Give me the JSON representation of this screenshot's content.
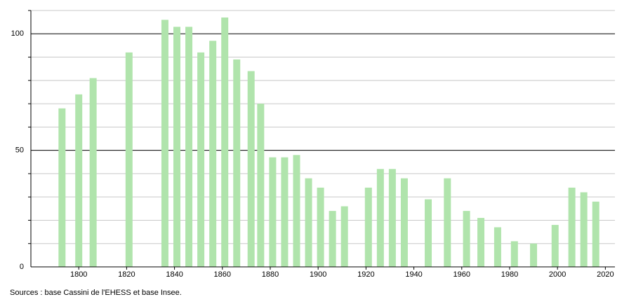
{
  "chart_data": {
    "type": "bar",
    "x": [
      1793,
      1800,
      1806,
      1821,
      1836,
      1841,
      1846,
      1851,
      1856,
      1861,
      1866,
      1872,
      1876,
      1881,
      1886,
      1891,
      1896,
      1901,
      1906,
      1911,
      1921,
      1926,
      1931,
      1936,
      1946,
      1954,
      1962,
      1968,
      1975,
      1982,
      1990,
      1999,
      2006,
      2011,
      2016
    ],
    "values": [
      68,
      74,
      81,
      92,
      106,
      103,
      103,
      92,
      97,
      107,
      89,
      84,
      70,
      47,
      47,
      48,
      38,
      34,
      24,
      26,
      34,
      42,
      42,
      38,
      29,
      38,
      24,
      21,
      17,
      11,
      10,
      18,
      34,
      32,
      28
    ],
    "color": "#b0e4ac",
    "xlim": [
      1780,
      2024
    ],
    "xticks": [
      1800,
      1820,
      1840,
      1860,
      1880,
      1900,
      1920,
      1940,
      1960,
      1980,
      2000,
      2020
    ],
    "ylim": [
      0,
      110
    ],
    "yticks": [
      0,
      50,
      100
    ],
    "minor_yticks": [
      10,
      20,
      30,
      40,
      60,
      70,
      80,
      90,
      110
    ],
    "grid": true,
    "source": "Sources : base Cassini de l'EHESS et base Insee."
  }
}
